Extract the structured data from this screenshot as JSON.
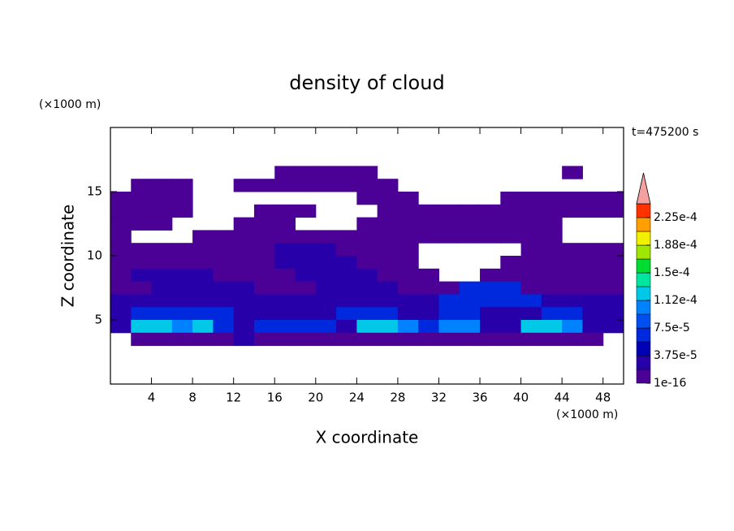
{
  "chart_data": {
    "type": "contour",
    "title": "density of cloud",
    "x_label": "X coordinate",
    "y_label": "Z coordinate",
    "x_unit": "(×1000 m)",
    "y_unit": "(×1000 m)",
    "annotation": "t=475200 s",
    "xlim": [
      0,
      50
    ],
    "ylim": [
      0,
      20
    ],
    "xticks": [
      4,
      8,
      12,
      16,
      20,
      24,
      28,
      32,
      36,
      40,
      44,
      48
    ],
    "yticks": [
      5,
      10,
      15
    ],
    "levels": [
      1e-16,
      1.875e-05,
      3.75e-05,
      5.625e-05,
      7.5e-05,
      9.375e-05,
      0.0001125,
      0.00013125,
      0.00015,
      0.00016875,
      0.0001875,
      0.00020625,
      0.000225
    ],
    "colors": [
      "#4b0096",
      "#2800aa",
      "#0000b4",
      "#0028dc",
      "#0050f0",
      "#0082ff",
      "#00c8e6",
      "#00e6a0",
      "#00dc32",
      "#a0e600",
      "#f0f000",
      "#ffa000",
      "#ff3200"
    ],
    "overflow_color": "#f4a0a0",
    "colorbar_ticks": [
      1e-16,
      {
        "value": 3.75e-05,
        "label": "3.75e-5"
      },
      {
        "value": 7.5e-05,
        "label": "7.5e-5"
      },
      {
        "value": 0.0001125,
        "label": "1.12e-4"
      },
      {
        "value": 0.00015,
        "label": "1.5e-4"
      },
      {
        "value": 0.0001875,
        "label": "1.88e-4"
      },
      {
        "value": 0.000225,
        "label": "2.25e-4"
      }
    ],
    "x": [
      1,
      3,
      5,
      7,
      9,
      11,
      13,
      15,
      17,
      19,
      21,
      23,
      25,
      27,
      29,
      31,
      33,
      35,
      37,
      39,
      41,
      43,
      45,
      47,
      49
    ],
    "y": [
      19.5,
      18.5,
      17.5,
      16.5,
      15.5,
      14.5,
      13.5,
      12.5,
      11.5,
      10.5,
      9.5,
      8.5,
      7.5,
      6.5,
      5.5,
      4.5,
      3.5,
      2.5,
      1.5,
      0.5
    ],
    "z": [
      [
        0,
        0,
        0,
        0,
        0,
        0,
        0,
        0,
        0,
        0,
        0,
        0,
        0,
        0,
        0,
        0,
        0,
        0,
        0,
        0,
        0,
        0,
        0,
        0,
        0
      ],
      [
        0,
        0,
        0,
        0,
        0,
        0,
        0,
        0,
        0,
        0,
        0,
        0,
        0,
        0,
        0,
        0,
        0,
        0,
        0,
        0,
        0,
        0,
        0,
        0,
        0
      ],
      [
        0,
        0,
        0,
        0,
        0,
        0,
        0,
        0,
        0,
        0,
        0,
        0,
        0,
        0,
        0,
        0,
        0,
        0,
        0,
        0,
        0,
        0,
        0,
        0,
        0
      ],
      [
        0,
        0,
        0,
        0,
        0,
        0,
        0,
        0,
        1e-05,
        1e-05,
        1e-05,
        1e-05,
        1e-05,
        0,
        0,
        0,
        0,
        0,
        0,
        0,
        0,
        0,
        1e-05,
        0,
        0
      ],
      [
        0,
        1e-05,
        1e-05,
        1e-05,
        0,
        0,
        1e-05,
        1e-05,
        1e-05,
        1e-05,
        1e-05,
        1e-05,
        1e-05,
        1e-05,
        0,
        0,
        0,
        0,
        0,
        0,
        0,
        0,
        0,
        0,
        0
      ],
      [
        1e-05,
        1e-05,
        1e-05,
        1e-05,
        0,
        0,
        0,
        0,
        0,
        0,
        0,
        0,
        1e-05,
        1e-05,
        1e-05,
        0,
        0,
        0,
        0,
        1e-05,
        1e-05,
        1e-05,
        1e-05,
        1e-05,
        1e-05
      ],
      [
        1e-05,
        1e-05,
        1e-05,
        1e-05,
        0,
        0,
        0,
        1e-05,
        1e-05,
        1e-05,
        0,
        0,
        0,
        1e-05,
        1e-05,
        1e-05,
        1e-05,
        1e-05,
        1e-05,
        1e-05,
        1e-05,
        1e-05,
        1e-05,
        1e-05,
        1e-05
      ],
      [
        1e-05,
        1e-05,
        1e-05,
        0,
        0,
        0,
        1e-05,
        1e-05,
        1e-05,
        0,
        0,
        0,
        1e-05,
        1e-05,
        1e-05,
        1e-05,
        1e-05,
        1e-05,
        1e-05,
        1e-05,
        1e-05,
        1e-05,
        0,
        0,
        0
      ],
      [
        1e-05,
        0,
        0,
        0,
        1e-05,
        1e-05,
        1e-05,
        1e-05,
        1e-05,
        1e-05,
        1e-05,
        1e-05,
        1e-05,
        1e-05,
        1e-05,
        1e-05,
        1e-05,
        1e-05,
        1e-05,
        1e-05,
        1e-05,
        1e-05,
        0,
        0,
        0
      ],
      [
        1e-05,
        1e-05,
        1e-05,
        1e-05,
        1e-05,
        1e-05,
        1e-05,
        1e-05,
        3e-05,
        3e-05,
        3e-05,
        1e-05,
        1e-05,
        1e-05,
        1e-05,
        0,
        0,
        0,
        0,
        0,
        1e-05,
        1e-05,
        1e-05,
        1e-05,
        1e-05
      ],
      [
        1e-05,
        1e-05,
        1e-05,
        1e-05,
        1e-05,
        1e-05,
        1e-05,
        1e-05,
        3e-05,
        3e-05,
        3e-05,
        3e-05,
        1e-05,
        1e-05,
        1e-05,
        0,
        0,
        0,
        0,
        1e-05,
        1e-05,
        1e-05,
        1e-05,
        1e-05,
        1e-05
      ],
      [
        1e-05,
        3e-05,
        3e-05,
        3e-05,
        3e-05,
        1e-05,
        1e-05,
        1e-05,
        1e-05,
        3e-05,
        3e-05,
        3e-05,
        3e-05,
        1e-05,
        1e-05,
        1e-05,
        0,
        0,
        1e-05,
        1e-05,
        1e-05,
        1e-05,
        1e-05,
        1e-05,
        1e-05
      ],
      [
        1e-05,
        1e-05,
        3e-05,
        3e-05,
        3e-05,
        3e-05,
        3e-05,
        1e-05,
        1e-05,
        1e-05,
        3e-05,
        3e-05,
        3e-05,
        3e-05,
        1e-05,
        1e-05,
        1e-05,
        6e-05,
        6e-05,
        6e-05,
        1e-05,
        1e-05,
        1e-05,
        1e-05,
        1e-05
      ],
      [
        3e-05,
        3e-05,
        3e-05,
        3e-05,
        3e-05,
        3e-05,
        3e-05,
        3e-05,
        3e-05,
        3e-05,
        3e-05,
        3e-05,
        3e-05,
        3e-05,
        3e-05,
        3e-05,
        6e-05,
        6e-05,
        6e-05,
        6e-05,
        6e-05,
        3e-05,
        3e-05,
        3e-05,
        3e-05
      ],
      [
        3e-05,
        6e-05,
        6e-05,
        6e-05,
        6e-05,
        6e-05,
        3e-05,
        3e-05,
        3e-05,
        3e-05,
        3e-05,
        6e-05,
        6e-05,
        6e-05,
        3e-05,
        3e-05,
        6e-05,
        6e-05,
        3e-05,
        3e-05,
        3e-05,
        6e-05,
        6e-05,
        3e-05,
        3e-05
      ],
      [
        3e-05,
        0.00012,
        0.00012,
        0.0001,
        0.00012,
        6e-05,
        3e-05,
        6e-05,
        6e-05,
        6e-05,
        6e-05,
        3e-05,
        0.00012,
        0.00012,
        0.0001,
        6e-05,
        0.0001,
        0.0001,
        3e-05,
        3e-05,
        0.00012,
        0.00012,
        0.0001,
        3e-05,
        3e-05
      ],
      [
        0,
        1e-05,
        1e-05,
        1e-05,
        1e-05,
        1e-05,
        3e-05,
        1e-05,
        1e-05,
        1e-05,
        1e-05,
        1e-05,
        1e-05,
        1e-05,
        1e-05,
        1e-05,
        1e-05,
        1e-05,
        1e-05,
        1e-05,
        1e-05,
        1e-05,
        1e-05,
        1e-05,
        0
      ],
      [
        0,
        0,
        0,
        0,
        0,
        0,
        0,
        0,
        0,
        0,
        0,
        0,
        0,
        0,
        0,
        0,
        0,
        0,
        0,
        0,
        0,
        0,
        0,
        0,
        0
      ],
      [
        0,
        0,
        0,
        0,
        0,
        0,
        0,
        0,
        0,
        0,
        0,
        0,
        0,
        0,
        0,
        0,
        0,
        0,
        0,
        0,
        0,
        0,
        0,
        0,
        0
      ],
      [
        0,
        0,
        0,
        0,
        0,
        0,
        0,
        0,
        0,
        0,
        0,
        0,
        0,
        0,
        0,
        0,
        0,
        0,
        0,
        0,
        0,
        0,
        0,
        0,
        0
      ]
    ]
  }
}
